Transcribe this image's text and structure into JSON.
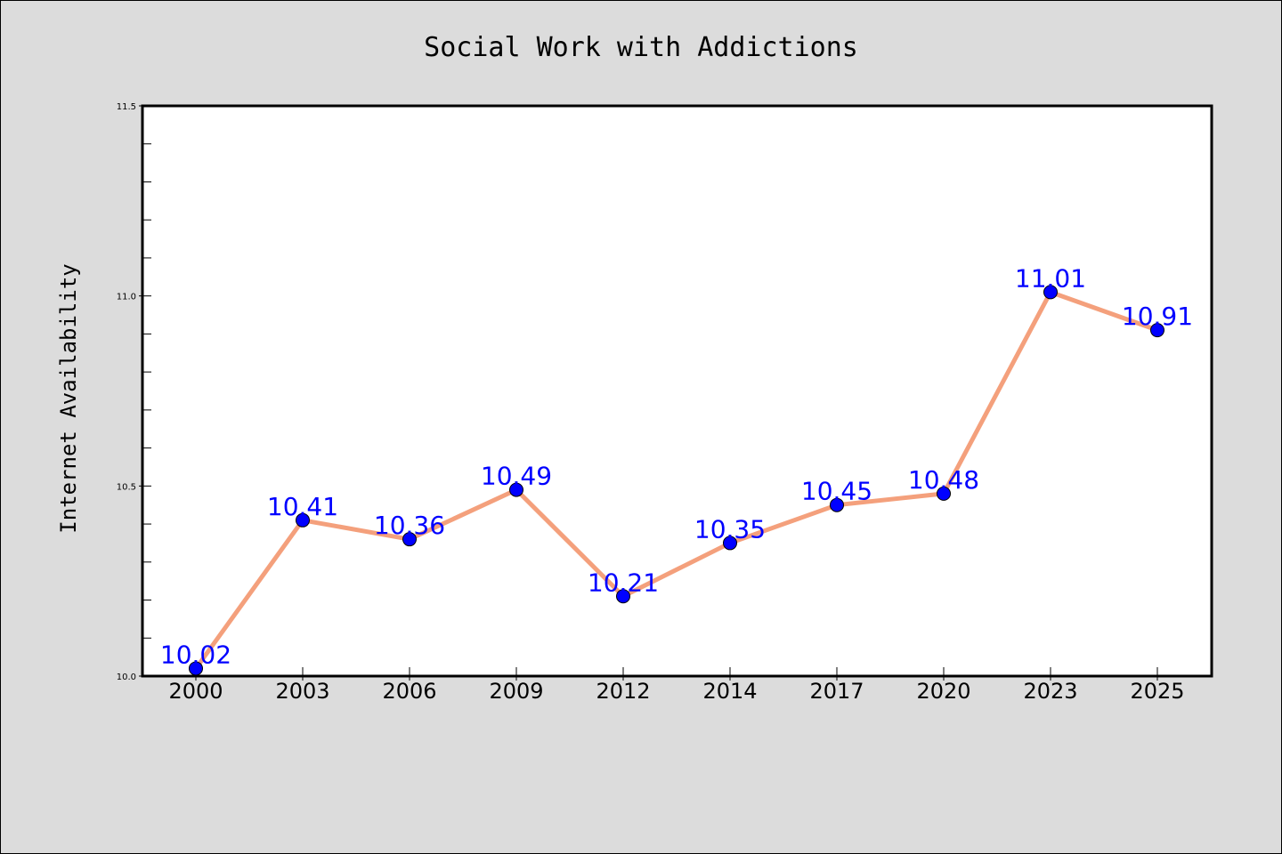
{
  "chart_data": {
    "type": "line",
    "title": "Social Work with Addictions",
    "xlabel": "",
    "ylabel": "Internet Availability",
    "categories": [
      "2000",
      "2003",
      "2006",
      "2009",
      "2012",
      "2014",
      "2017",
      "2020",
      "2023",
      "2025"
    ],
    "values": [
      10.02,
      10.41,
      10.36,
      10.49,
      10.21,
      10.35,
      10.45,
      10.48,
      11.01,
      10.91
    ],
    "data_labels": [
      "10.02",
      "10.41",
      "10.36",
      "10.49",
      "10.21",
      "10.35",
      "10.45",
      "10.48",
      "11.01",
      "10.91"
    ],
    "ylim": [
      10.0,
      11.5
    ],
    "yticks": [
      "10.0",
      "10.5",
      "11.0",
      "11.5"
    ],
    "grid": false,
    "colors": {
      "line": "#f4a07c",
      "marker": "#0000ff",
      "label": "#0000ff",
      "background": "#dcdcdc",
      "plot_background": "#ffffff"
    }
  }
}
